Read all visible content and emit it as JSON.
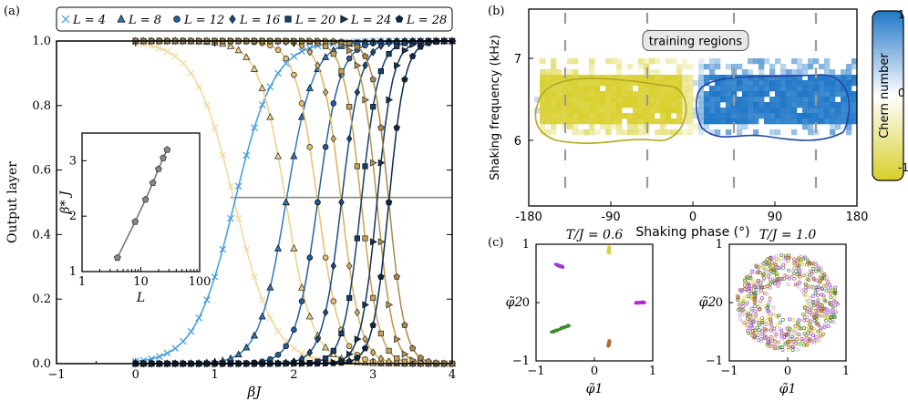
{
  "chart_data": [
    {
      "panel": "(a)",
      "type": "line",
      "xlabel": "βJ",
      "ylabel": "Output layer",
      "xlim": [
        -1,
        4
      ],
      "ylim": [
        0,
        1
      ],
      "xticks": [
        "−1",
        "0",
        "1",
        "2",
        "3",
        "4"
      ],
      "yticks": [
        "0.0",
        "0.2",
        "0.4",
        "0.6",
        "0.8",
        "1.0"
      ],
      "crossing_line_y": 0.5,
      "legend": [
        {
          "label": "L = 4",
          "marker": "x",
          "color": "#3d9be0",
          "light": "#f3d89a"
        },
        {
          "label": "L = 8",
          "marker": "triangle",
          "color": "#2f79bf",
          "light": "#efcf88"
        },
        {
          "label": "L = 12",
          "marker": "circle",
          "color": "#245f9e",
          "light": "#e7c06c"
        },
        {
          "label": "L = 16",
          "marker": "diamond",
          "color": "#1c4c85",
          "light": "#d9b15e"
        },
        {
          "label": "L = 20",
          "marker": "square",
          "color": "#173f70",
          "light": "#c9a354"
        },
        {
          "label": "L = 24",
          "marker": "triangle-right",
          "color": "#12345d",
          "light": "#b9964d"
        },
        {
          "label": "L = 28",
          "marker": "pentagon",
          "color": "#0d2a4c",
          "light": "#a98a46"
        }
      ],
      "series": [
        {
          "name": "L = 4",
          "beta_star": 1.25,
          "width": 0.25
        },
        {
          "name": "L = 8",
          "beta_star": 1.9,
          "width": 0.17
        },
        {
          "name": "L = 12",
          "beta_star": 2.3,
          "width": 0.14
        },
        {
          "name": "L = 16",
          "beta_star": 2.6,
          "width": 0.12
        },
        {
          "name": "L = 20",
          "beta_star": 2.85,
          "width": 0.11
        },
        {
          "name": "L = 24",
          "beta_star": 3.05,
          "width": 0.1
        },
        {
          "name": "L = 28",
          "beta_star": 3.2,
          "width": 0.1
        }
      ],
      "inset": {
        "xlabel": "L",
        "ylabel": "β* J",
        "xscale": "log",
        "xlim": [
          1,
          100
        ],
        "ylim": [
          1,
          3.5
        ],
        "xticks": [
          "1",
          "10",
          "100"
        ],
        "yticks": [
          "1",
          "2",
          "3"
        ],
        "L": [
          4,
          8,
          12,
          16,
          20,
          24,
          28
        ],
        "beta_star_J": [
          1.25,
          1.9,
          2.3,
          2.6,
          2.85,
          3.05,
          3.2
        ]
      }
    },
    {
      "panel": "(b)",
      "type": "heatmap",
      "xlabel": "Shaking phase (°)",
      "ylabel": "Shaking frequency (kHz)",
      "xlim": [
        -180,
        180
      ],
      "ylim": [
        5.2,
        7.6
      ],
      "xticks": [
        "-180",
        "-90",
        "0",
        "90",
        "180"
      ],
      "yticks": [
        "6",
        "7"
      ],
      "annotation": "training regions",
      "training_lines_phase": [
        -140,
        -50,
        45,
        135
      ],
      "colorbar": {
        "label": "Chern number",
        "ticks": [
          "1",
          "0",
          "-1"
        ],
        "top_color": "#1f77c7",
        "bottom_color": "#d8cf2b"
      },
      "regions": [
        {
          "chern": -1,
          "phase_range": [
            -170,
            -5
          ],
          "freq_range": [
            6.2,
            6.9
          ]
        },
        {
          "chern": 1,
          "phase_range": [
            5,
            172
          ],
          "freq_range": [
            6.2,
            6.85
          ]
        }
      ]
    },
    {
      "panel": "(c)",
      "type": "scatter",
      "subplots": [
        {
          "title": "T/J = 0.6",
          "xlabel": "φ̃1",
          "ylabel": "φ̃2",
          "xlim": [
            -1,
            1
          ],
          "ylim": [
            -1,
            1
          ],
          "xticks": [
            "−1",
            "0",
            "1"
          ],
          "yticks": [
            "−1",
            "0",
            "1"
          ],
          "clusters": [
            {
              "color": "#9c3bd1",
              "x": -0.6,
              "y": 0.63
            },
            {
              "color": "#d9d23a",
              "x": 0.25,
              "y": 0.9
            },
            {
              "color": "#b62ad6",
              "x": 0.78,
              "y": 0.0
            },
            {
              "color": "#3e8a2c",
              "x": -0.58,
              "y": -0.45
            },
            {
              "color": "#b06a32",
              "x": 0.25,
              "y": -0.7
            }
          ]
        },
        {
          "title": "T/J = 1.0",
          "xlabel": "φ̃1",
          "ylabel": "φ̃2",
          "xlim": [
            -1,
            1
          ],
          "ylim": [
            -1,
            1
          ],
          "xticks": [
            "−1",
            "0",
            "1"
          ],
          "yticks": [
            "−1",
            "0",
            "1"
          ],
          "points_per_color": 140,
          "colors": [
            "#9c3bd1",
            "#d9d23a",
            "#3e8a2c",
            "#b06a32",
            "#c9a0e8"
          ]
        }
      ]
    }
  ]
}
